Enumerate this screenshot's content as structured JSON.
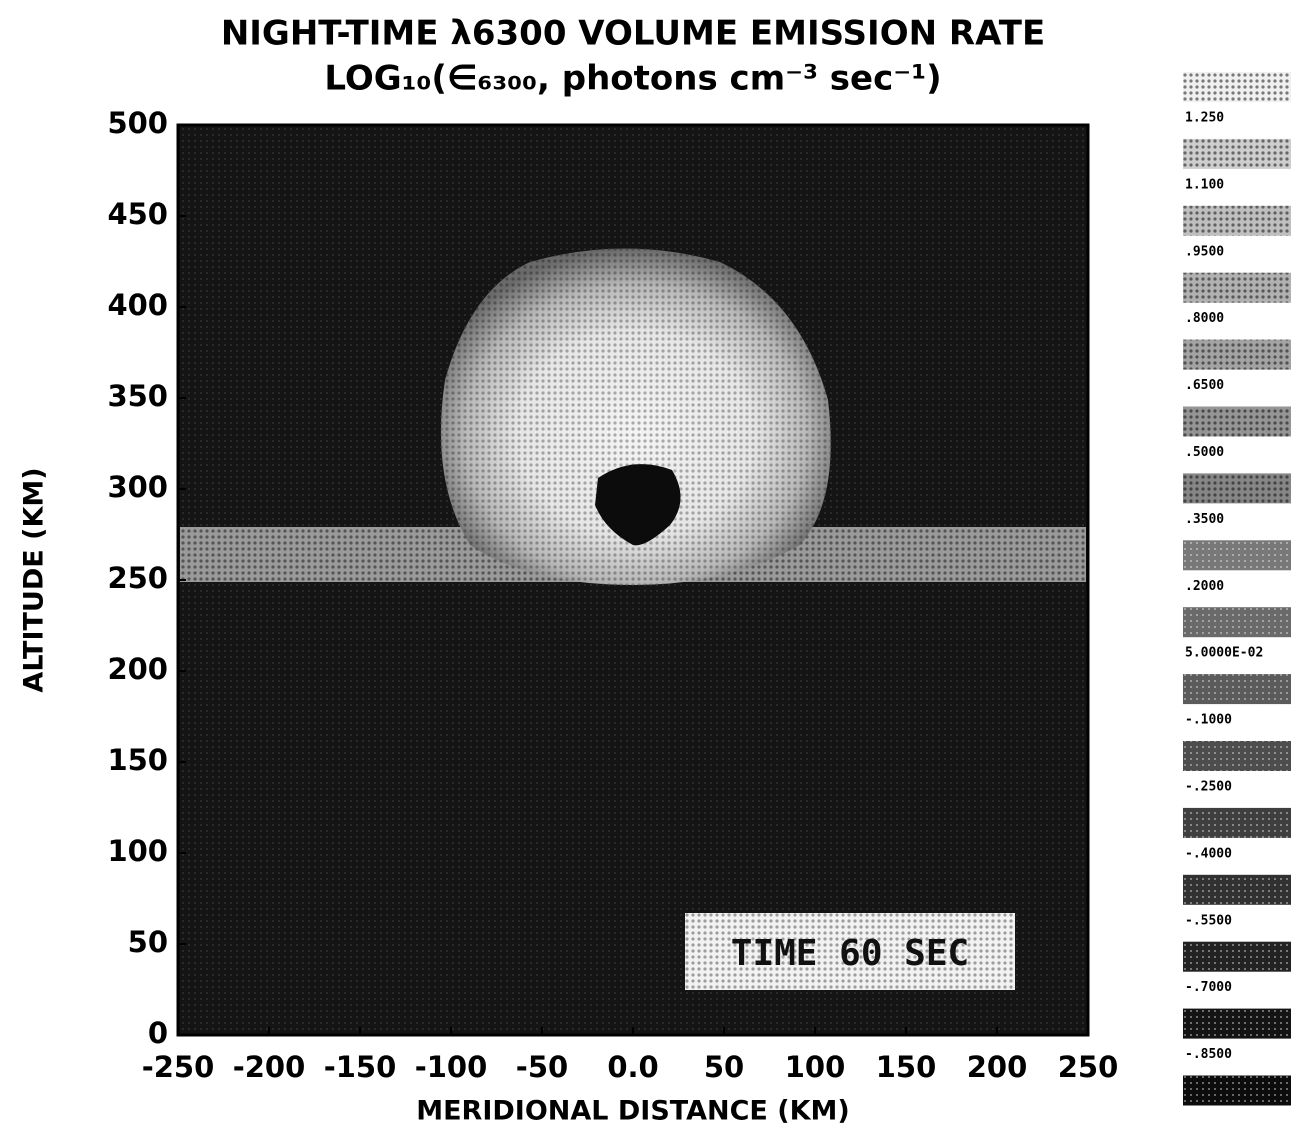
{
  "chart_data": {
    "type": "contour",
    "title": "NIGHT-TIME λ6300 VOLUME EMISSION RATE",
    "subtitle": "LOG₁₀(∈₆₃₀₀, photons cm⁻³ sec⁻¹)",
    "xlabel": "MERIDIONAL DISTANCE (KM)",
    "ylabel": "ALTITUDE (KM)",
    "xlim": [
      -250,
      250
    ],
    "xticks": [
      -250,
      -200,
      -150,
      -100,
      -50,
      {
        "value": 0,
        "label": "0.0"
      },
      50,
      100,
      150,
      200,
      250
    ],
    "ylim": [
      0,
      500
    ],
    "yticks": [
      0,
      50,
      100,
      150,
      200,
      250,
      300,
      350,
      400,
      450,
      500
    ],
    "annotation": "TIME 60 SEC",
    "levels": [
      {
        "value": 1.25,
        "label": "1.250"
      },
      {
        "value": 1.1,
        "label": "1.100"
      },
      {
        "value": 0.95,
        "label": ".9500"
      },
      {
        "value": 0.8,
        "label": ".8000"
      },
      {
        "value": 0.65,
        "label": ".6500"
      },
      {
        "value": 0.5,
        "label": ".5000"
      },
      {
        "value": 0.35,
        "label": ".3500"
      },
      {
        "value": 0.2,
        "label": ".2000"
      },
      {
        "value": 0.05,
        "label": "5.0000E-02"
      },
      {
        "value": -0.1,
        "label": "-.1000"
      },
      {
        "value": -0.25,
        "label": "-.2500"
      },
      {
        "value": -0.4,
        "label": "-.4000"
      },
      {
        "value": -0.55,
        "label": "-.5500"
      },
      {
        "value": -0.7,
        "label": "-.7000"
      },
      {
        "value": -0.85,
        "label": "-.8500"
      }
    ]
  }
}
